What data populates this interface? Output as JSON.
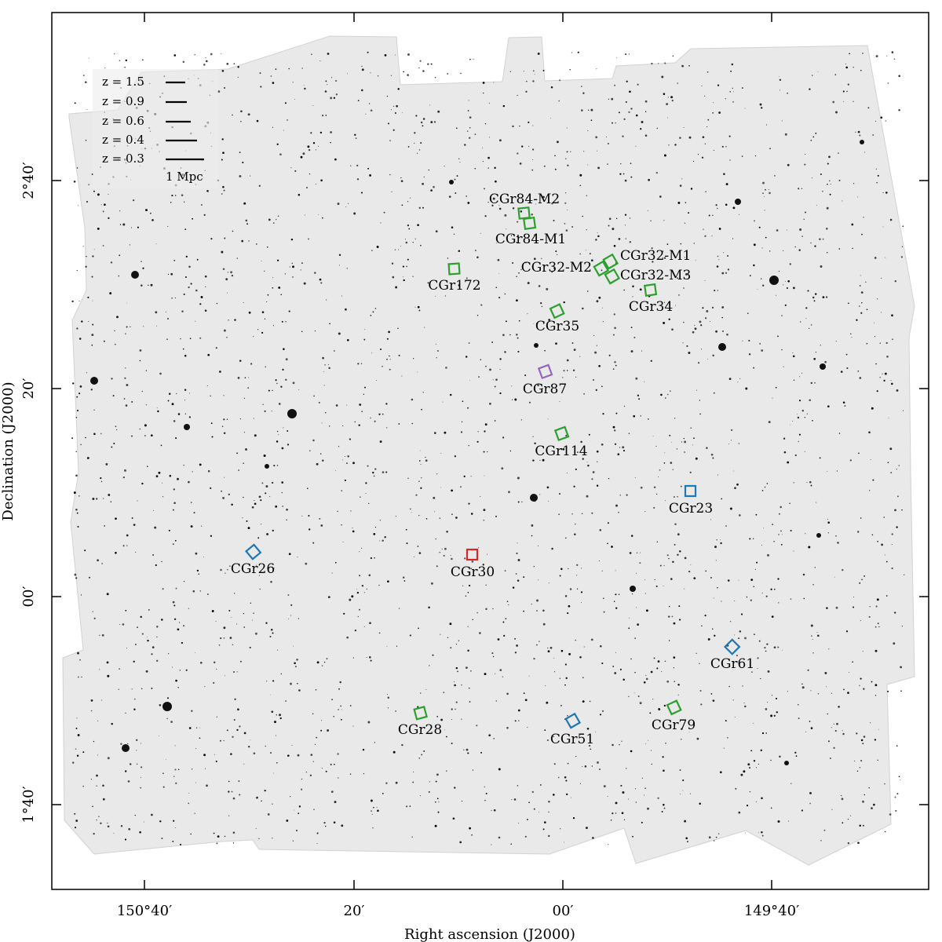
{
  "axes": {
    "xlabel": "Right ascension (J2000)",
    "ylabel": "Declination (J2000)",
    "xticks": [
      "150°40′",
      "20′",
      "00′",
      "149°40′"
    ],
    "yticks": [
      "2°40′",
      "20′",
      "00′",
      "1°40′"
    ]
  },
  "legend": {
    "entries": [
      "z = 1.5",
      "z = 0.9",
      "z = 0.6",
      "z = 0.4",
      "z = 0.3"
    ],
    "scale_label": "1 Mpc"
  },
  "colors": {
    "green": "#2ca02c",
    "blue": "#1f77b4",
    "red": "#d62728",
    "purple": "#9467bd"
  },
  "groups": [
    {
      "name": "CGr84-M2",
      "color": "green"
    },
    {
      "name": "CGr84-M1",
      "color": "green"
    },
    {
      "name": "CGr172",
      "color": "green"
    },
    {
      "name": "CGr32-M1",
      "color": "green"
    },
    {
      "name": "CGr32-M2",
      "color": "green"
    },
    {
      "name": "CGr32-M3",
      "color": "green"
    },
    {
      "name": "CGr34",
      "color": "green"
    },
    {
      "name": "CGr35",
      "color": "green"
    },
    {
      "name": "CGr87",
      "color": "purple"
    },
    {
      "name": "CGr114",
      "color": "green"
    },
    {
      "name": "CGr23",
      "color": "blue"
    },
    {
      "name": "CGr26",
      "color": "blue"
    },
    {
      "name": "CGr30",
      "color": "red"
    },
    {
      "name": "CGr61",
      "color": "blue"
    },
    {
      "name": "CGr28",
      "color": "green"
    },
    {
      "name": "CGr51",
      "color": "blue"
    },
    {
      "name": "CGr79",
      "color": "green"
    }
  ]
}
